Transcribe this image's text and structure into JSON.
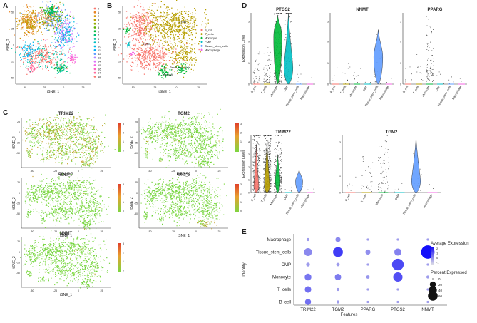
{
  "panels": {
    "a": "A",
    "b": "B",
    "c": "C",
    "d": "D",
    "e": "E"
  },
  "panel_a": {
    "xlabel": "tSNE_1",
    "ylabel": "tSNE_2",
    "x_ticks": [
      "-50",
      "-25",
      "0",
      "25"
    ],
    "y_ticks": [
      "50",
      "25",
      "0",
      "-25",
      "-50"
    ],
    "legend": [
      "0",
      "1",
      "2",
      "3",
      "4",
      "5",
      "6",
      "7",
      "8",
      "9",
      "10",
      "11",
      "12",
      "13",
      "14",
      "15",
      "16",
      "17",
      "18"
    ],
    "legend_colors": [
      "#f8766d",
      "#e88526",
      "#d39200",
      "#b79f00",
      "#93aa00",
      "#5eb300",
      "#00ba38",
      "#00bf74",
      "#00c19f",
      "#00bfc4",
      "#00b9e3",
      "#00adfa",
      "#619cff",
      "#ae87ff",
      "#db72fb",
      "#f564e3",
      "#ff61c3",
      "#ff699c",
      "#f8766d"
    ]
  },
  "panel_b": {
    "xlabel": "tSNE_1",
    "ylabel": "tSNE_2",
    "legend": [
      "B_cell",
      "T_cells",
      "Monocyte",
      "CMP",
      "Tissue_stem_cells",
      "Macrophage"
    ],
    "legend_colors": [
      "#f8766d",
      "#b79f00",
      "#00ba38",
      "#00bfc4",
      "#619cff",
      "#f564e3"
    ],
    "annotations": [
      "T_cells",
      "B_cell",
      "Tissue_stem_cells",
      "Monocyte"
    ]
  },
  "panel_c": {
    "genes": [
      "TRIM22",
      "TGM2",
      "PPARG",
      "PTGS2",
      "NNMT"
    ],
    "xlabel": "tSNE_1",
    "ylabel": "tSNE_2",
    "scale_ticks": [
      "3",
      "2",
      "1",
      "0"
    ]
  },
  "chart_data": [
    {
      "type": "violin",
      "title": "PTGS2",
      "ylabel": "Expression Level",
      "categories": [
        "B_cell",
        "T_cells",
        "Monocyte",
        "CMP",
        "Tissue_stem_cells",
        "Macrophage"
      ],
      "y_ticks": [
        "0",
        "1",
        "2",
        "3"
      ],
      "ylim": [
        0,
        3.4
      ]
    },
    {
      "type": "violin",
      "title": "NNMT",
      "categories": [
        "B_cell",
        "T_cells",
        "Monocyte",
        "CMP",
        "Tissue_stem_cells",
        "Macrophage"
      ],
      "y_ticks": [
        "0",
        "1",
        "2",
        "3"
      ],
      "ylim": [
        0,
        3.4
      ]
    },
    {
      "type": "violin",
      "title": "PPARG",
      "categories": [
        "B_cell",
        "T_cells",
        "Monocyte",
        "CMP",
        "Tissue_stem_cells",
        "Macrophage"
      ],
      "y_ticks": [
        "0",
        "1",
        "2",
        "3"
      ],
      "ylim": [
        0,
        3.4
      ]
    },
    {
      "type": "violin",
      "title": "TRIM22",
      "ylabel": "Expression Level",
      "categories": [
        "B_cell",
        "T_cells",
        "Monocyte",
        "CMP",
        "Tissue_stem_cells",
        "Macrophage"
      ],
      "y_ticks": [
        "0",
        "1",
        "2",
        "3",
        "4"
      ],
      "ylim": [
        0,
        4.5
      ]
    },
    {
      "type": "violin",
      "title": "TGM2",
      "categories": [
        "B_cell",
        "T_cells",
        "Monocyte",
        "CMP",
        "Tissue_stem_cells",
        "Macrophage"
      ],
      "y_ticks": [
        "0",
        "1",
        "2",
        "3"
      ],
      "ylim": [
        0,
        3.4
      ]
    },
    {
      "type": "dotplot",
      "xlabel": "Features",
      "ylabel": "Identity",
      "features": [
        "TRIM22",
        "TGM2",
        "PPARG",
        "PTGS2",
        "NNMT"
      ],
      "identities": [
        "Macrophage",
        "Tissue_stem_cells",
        "CMP",
        "Monocyte",
        "T_cells",
        "B_cell"
      ],
      "avg_expression": [
        [
          0,
          0.3,
          0,
          0,
          0
        ],
        [
          0.3,
          1.5,
          0.2,
          0.4,
          2.2
        ],
        [
          0,
          0,
          0,
          1.3,
          0
        ],
        [
          0.6,
          0.5,
          0.1,
          1.2,
          0
        ],
        [
          0.7,
          0,
          0,
          0,
          0
        ],
        [
          0.7,
          0,
          0,
          0,
          0
        ]
      ],
      "pct_expressed": [
        [
          2,
          8,
          1,
          1,
          1
        ],
        [
          22,
          36,
          8,
          18,
          70
        ],
        [
          4,
          3,
          1,
          52,
          1
        ],
        [
          16,
          14,
          3,
          32,
          2
        ],
        [
          14,
          2,
          1,
          1,
          1
        ],
        [
          12,
          2,
          1,
          1,
          1
        ]
      ],
      "legend_avg_title": "Average Expression",
      "legend_avg_ticks": [
        "2",
        "1",
        "0",
        "-1"
      ],
      "legend_pct_title": "Percent Expressed",
      "legend_pct_values": [
        "0",
        "20",
        "40",
        "60"
      ]
    }
  ]
}
